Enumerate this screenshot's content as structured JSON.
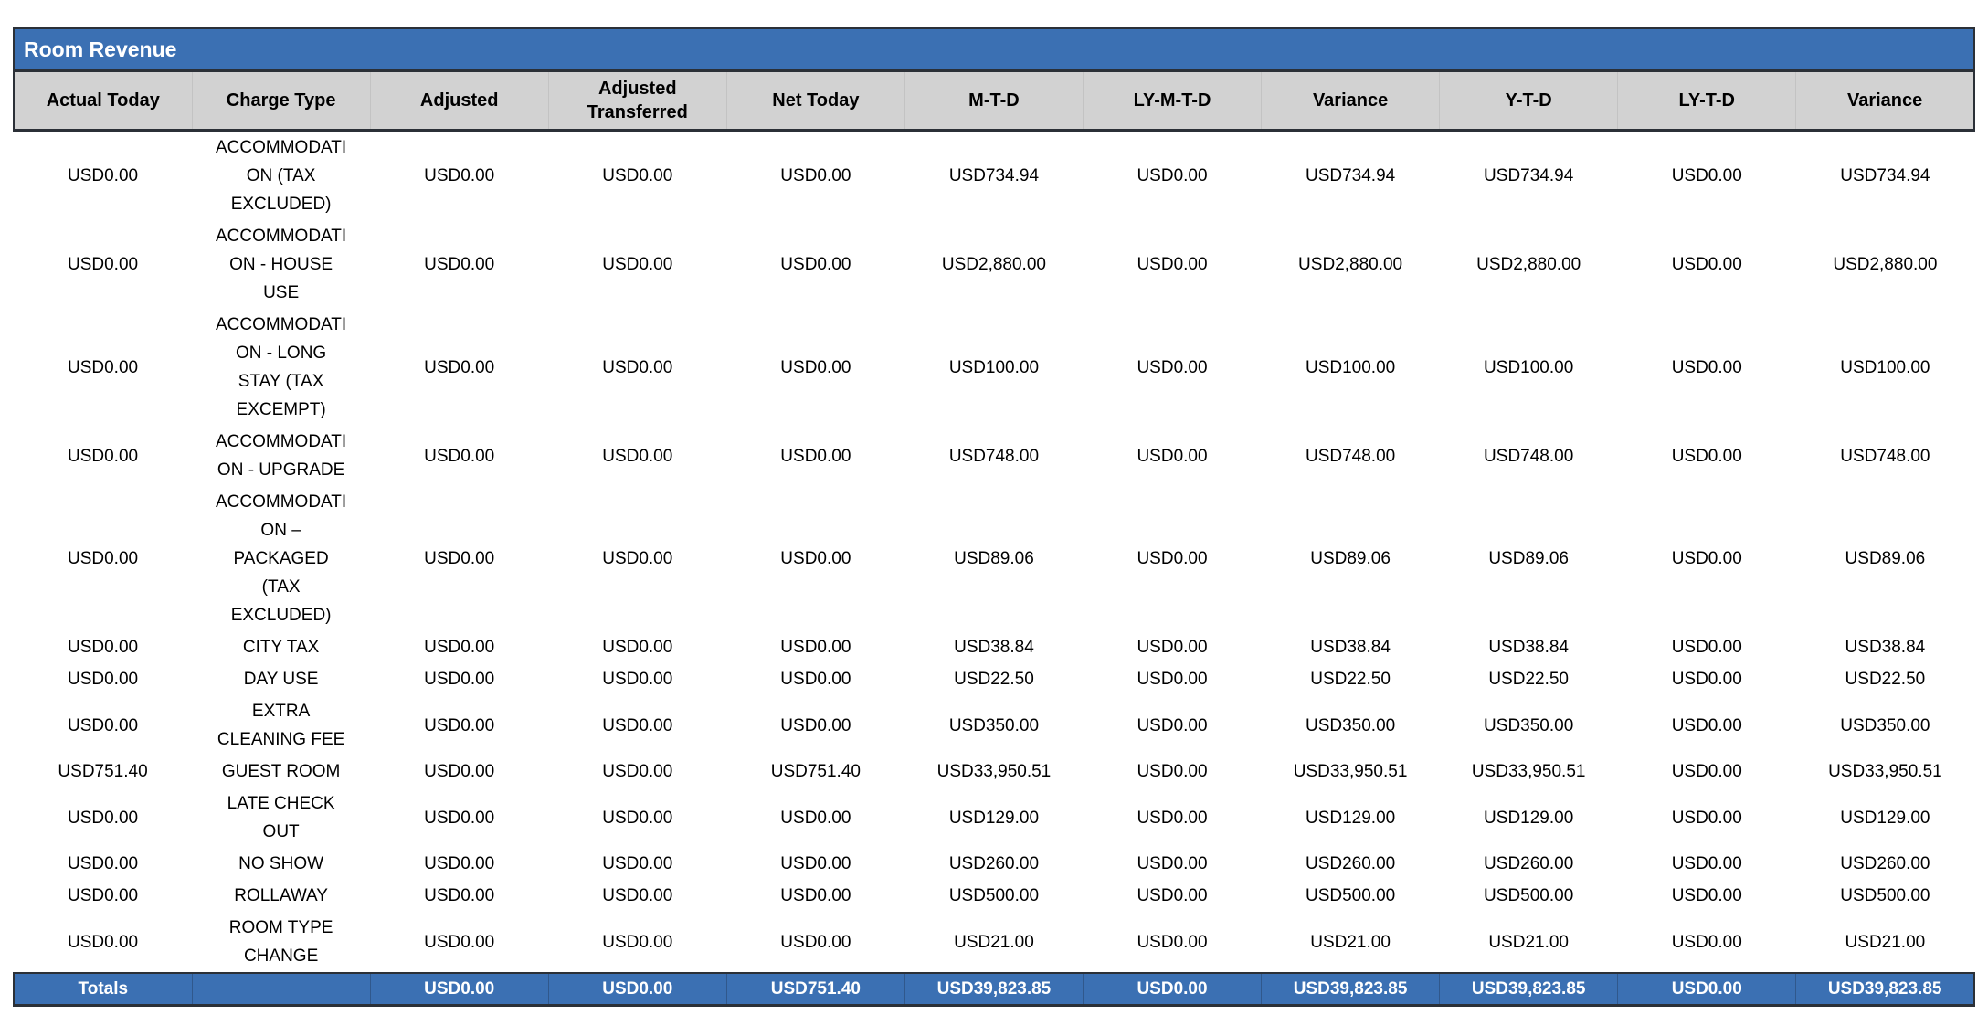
{
  "report": {
    "title": "Room Revenue",
    "colors": {
      "accent_blue": "#3B70B3",
      "header_gray": "#D2D2D2",
      "border_dark": "#2B3037",
      "title_text": "#FFFFFF",
      "body_text": "#000000"
    },
    "table": {
      "columns": [
        "Actual Today",
        "Charge Type",
        "Adjusted",
        "Adjusted Transferred",
        "Net Today",
        "M-T-D",
        "LY-M-T-D",
        "Variance",
        "Y-T-D",
        "LY-T-D",
        "Variance"
      ],
      "column_keys": [
        "actual-today",
        "charge-type",
        "adjusted",
        "adjusted-transferred",
        "net-today",
        "mtd",
        "ly-mtd",
        "variance-mtd",
        "ytd",
        "ly-ytd",
        "variance-ytd"
      ],
      "rows": [
        [
          "USD0.00",
          "ACCOMMODATION (TAX EXCLUDED)",
          "USD0.00",
          "USD0.00",
          "USD0.00",
          "USD734.94",
          "USD0.00",
          "USD734.94",
          "USD734.94",
          "USD0.00",
          "USD734.94"
        ],
        [
          "USD0.00",
          "ACCOMMODATION - HOUSE USE",
          "USD0.00",
          "USD0.00",
          "USD0.00",
          "USD2,880.00",
          "USD0.00",
          "USD2,880.00",
          "USD2,880.00",
          "USD0.00",
          "USD2,880.00"
        ],
        [
          "USD0.00",
          "ACCOMMODATION - LONG STAY (TAX EXCEMPT)",
          "USD0.00",
          "USD0.00",
          "USD0.00",
          "USD100.00",
          "USD0.00",
          "USD100.00",
          "USD100.00",
          "USD0.00",
          "USD100.00"
        ],
        [
          "USD0.00",
          "ACCOMMODATION - UPGRADE",
          "USD0.00",
          "USD0.00",
          "USD0.00",
          "USD748.00",
          "USD0.00",
          "USD748.00",
          "USD748.00",
          "USD0.00",
          "USD748.00"
        ],
        [
          "USD0.00",
          "ACCOMMODATION – PACKAGED (TAX EXCLUDED)",
          "USD0.00",
          "USD0.00",
          "USD0.00",
          "USD89.06",
          "USD0.00",
          "USD89.06",
          "USD89.06",
          "USD0.00",
          "USD89.06"
        ],
        [
          "USD0.00",
          "CITY TAX",
          "USD0.00",
          "USD0.00",
          "USD0.00",
          "USD38.84",
          "USD0.00",
          "USD38.84",
          "USD38.84",
          "USD0.00",
          "USD38.84"
        ],
        [
          "USD0.00",
          "DAY USE",
          "USD0.00",
          "USD0.00",
          "USD0.00",
          "USD22.50",
          "USD0.00",
          "USD22.50",
          "USD22.50",
          "USD0.00",
          "USD22.50"
        ],
        [
          "USD0.00",
          "EXTRA CLEANING FEE",
          "USD0.00",
          "USD0.00",
          "USD0.00",
          "USD350.00",
          "USD0.00",
          "USD350.00",
          "USD350.00",
          "USD0.00",
          "USD350.00"
        ],
        [
          "USD751.40",
          "GUEST ROOM",
          "USD0.00",
          "USD0.00",
          "USD751.40",
          "USD33,950.51",
          "USD0.00",
          "USD33,950.51",
          "USD33,950.51",
          "USD0.00",
          "USD33,950.51"
        ],
        [
          "USD0.00",
          "LATE CHECK OUT",
          "USD0.00",
          "USD0.00",
          "USD0.00",
          "USD129.00",
          "USD0.00",
          "USD129.00",
          "USD129.00",
          "USD0.00",
          "USD129.00"
        ],
        [
          "USD0.00",
          "NO SHOW",
          "USD0.00",
          "USD0.00",
          "USD0.00",
          "USD260.00",
          "USD0.00",
          "USD260.00",
          "USD260.00",
          "USD0.00",
          "USD260.00"
        ],
        [
          "USD0.00",
          "ROLLAWAY",
          "USD0.00",
          "USD0.00",
          "USD0.00",
          "USD500.00",
          "USD0.00",
          "USD500.00",
          "USD500.00",
          "USD0.00",
          "USD500.00"
        ],
        [
          "USD0.00",
          "ROOM TYPE CHANGE",
          "USD0.00",
          "USD0.00",
          "USD0.00",
          "USD21.00",
          "USD0.00",
          "USD21.00",
          "USD21.00",
          "USD0.00",
          "USD21.00"
        ]
      ],
      "totals": [
        "Totals",
        "",
        "USD0.00",
        "USD0.00",
        "USD751.40",
        "USD39,823.85",
        "USD0.00",
        "USD39,823.85",
        "USD39,823.85",
        "USD0.00",
        "USD39,823.85"
      ]
    }
  }
}
